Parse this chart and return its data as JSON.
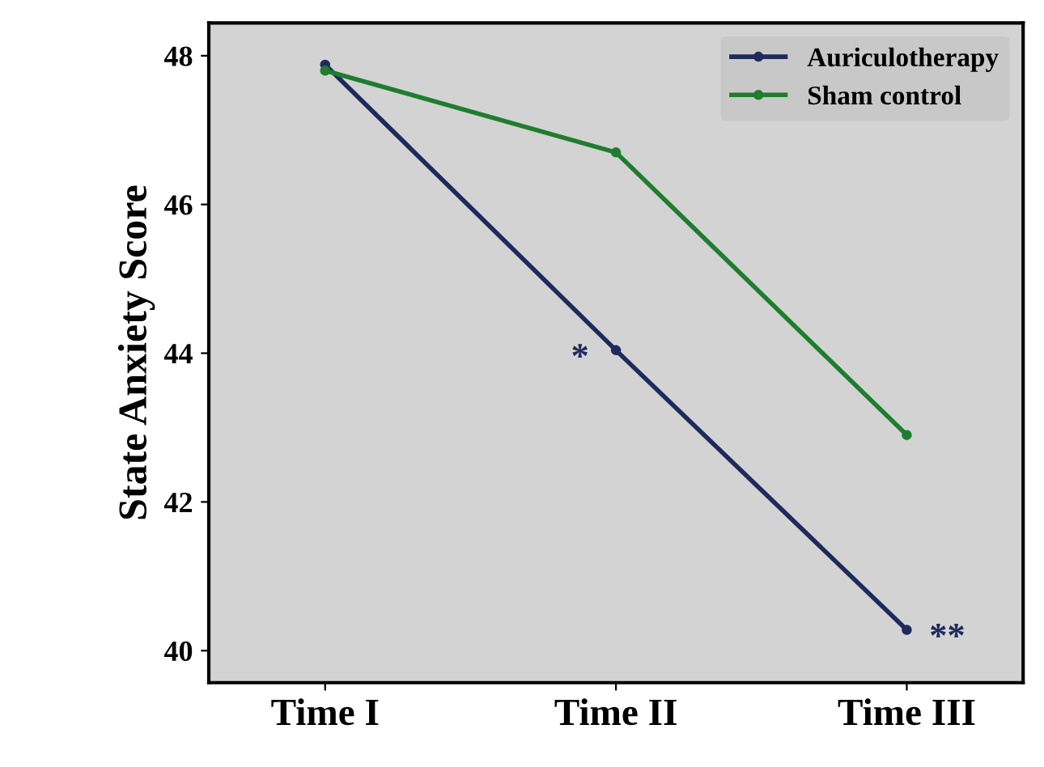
{
  "chart_data": {
    "type": "line",
    "ylabel": "State Anxiety Score",
    "categories": [
      "Time I",
      "Time II",
      "Time III"
    ],
    "series": [
      {
        "name": "Auriculotherapy",
        "color": "#1f2a5c",
        "values": [
          47.88,
          44.04,
          40.28
        ]
      },
      {
        "name": "Sham control",
        "color": "#1e7d2e",
        "values": [
          47.8,
          46.7,
          42.9
        ]
      }
    ],
    "ylim": [
      39.57,
      48.44
    ],
    "yticks": [
      40,
      42,
      44,
      46,
      48
    ],
    "marker": "circle",
    "grid": false,
    "legend": "top right",
    "annotations": [
      {
        "text": "*",
        "x": "Time II",
        "y": 44.04
      },
      {
        "text": "**",
        "x": "Time III",
        "y": 40.28
      }
    ]
  }
}
